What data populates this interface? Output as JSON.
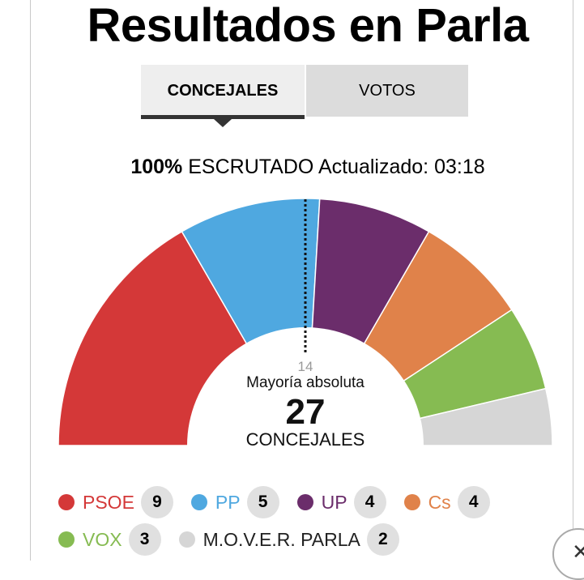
{
  "title": "Resultados en Parla",
  "tabs": [
    {
      "label": "CONCEJALES",
      "active": true
    },
    {
      "label": "VOTOS",
      "active": false
    }
  ],
  "status": {
    "percent": "100%",
    "scrutiny": "ESCRUTADO",
    "updated": "Actualizado: 03:18"
  },
  "center": {
    "majority_seats": "14",
    "majority_label": "Mayoría absoluta",
    "total": "27",
    "unit": "CONCEJALES"
  },
  "chart_data": {
    "type": "pie",
    "variant": "hemicycle",
    "total_seats": 27,
    "majority": 14,
    "series": [
      {
        "name": "PSOE",
        "value": 9,
        "color": "#d43838"
      },
      {
        "name": "PP",
        "value": 5,
        "color": "#4fa8e0"
      },
      {
        "name": "UP",
        "value": 4,
        "color": "#6b2d6b"
      },
      {
        "name": "Cs",
        "value": 4,
        "color": "#e0824a"
      },
      {
        "name": "VOX",
        "value": 3,
        "color": "#86bb52"
      },
      {
        "name": "M.O.V.E.R. PARLA",
        "value": 2,
        "color": "#d6d6d6"
      }
    ]
  },
  "legend": [
    {
      "name": "PSOE",
      "seats": "9",
      "color": "#d43838",
      "label_color": "#d43838"
    },
    {
      "name": "PP",
      "seats": "5",
      "color": "#4fa8e0",
      "label_color": "#4fa8e0"
    },
    {
      "name": "UP",
      "seats": "4",
      "color": "#6b2d6b",
      "label_color": "#6b2d6b"
    },
    {
      "name": "Cs",
      "seats": "4",
      "color": "#e0824a",
      "label_color": "#e0824a"
    },
    {
      "name": "VOX",
      "seats": "3",
      "color": "#86bb52",
      "label_color": "#86bb52"
    },
    {
      "name": "M.O.V.E.R. PARLA",
      "seats": "2",
      "color": "#d6d6d6",
      "label_color": "#222222"
    }
  ]
}
